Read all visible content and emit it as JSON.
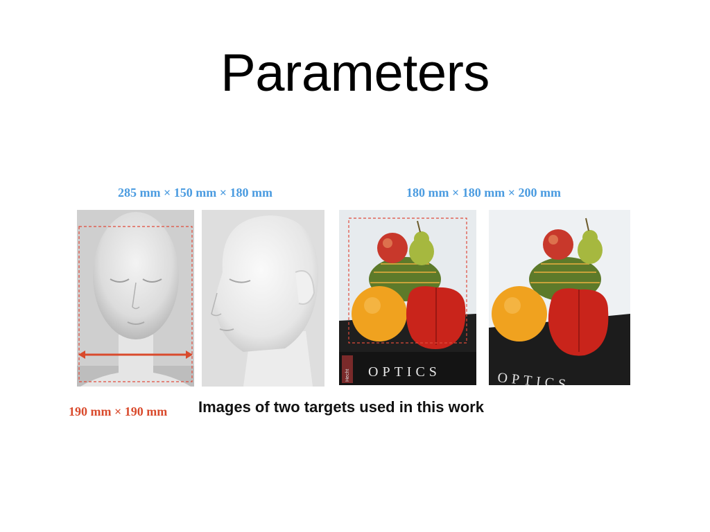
{
  "slide": {
    "title": "Parameters",
    "caption": "Images of two targets used in this work"
  },
  "target_head": {
    "dimensions": "285 mm × 150 mm × 180 mm",
    "marked_width": "190 mm × 190 mm"
  },
  "target_fruit": {
    "dimensions": "180 mm × 180 mm × 200 mm",
    "book_title": "OPTICS",
    "book_author": "Hecht"
  },
  "colors": {
    "blue_label": "#4a9be0",
    "red_label": "#d94a2c"
  }
}
